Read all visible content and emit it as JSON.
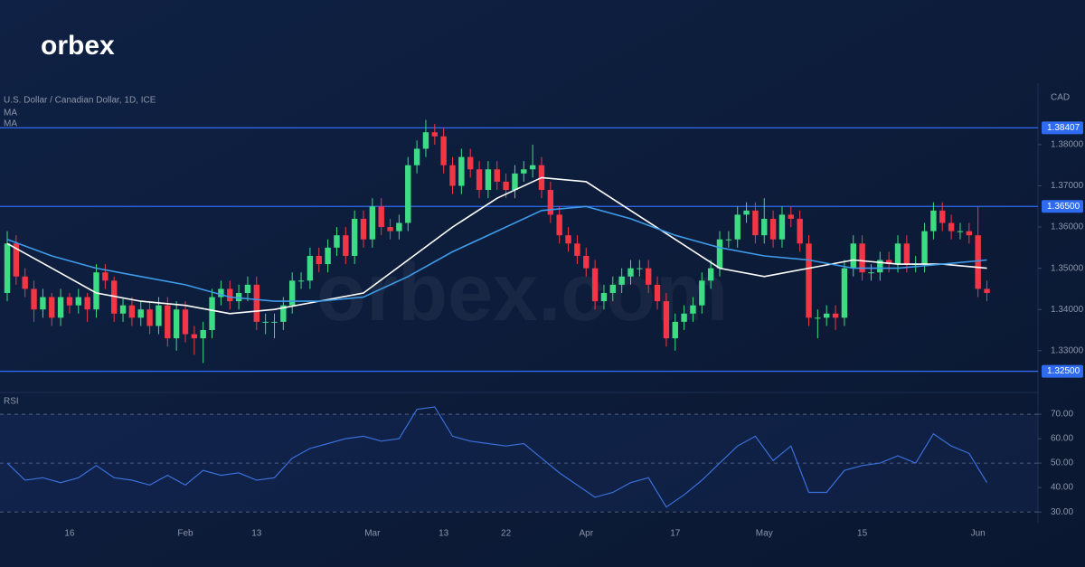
{
  "brand": "orbex",
  "watermark": "orbex.com",
  "chart_data": {
    "type": "candlestick",
    "title": "U.S. Dollar / Canadian Dollar, 1D, ICE",
    "price_axis_label": "CAD",
    "up_color": "#3ddc84",
    "down_color": "#f23645",
    "categories": [
      null,
      null,
      null,
      null,
      null,
      null,
      null,
      "16",
      null,
      null,
      null,
      null,
      null,
      null,
      null,
      null,
      null,
      null,
      null,
      null,
      "Feb",
      null,
      null,
      null,
      null,
      null,
      null,
      null,
      "13",
      null,
      null,
      null,
      null,
      null,
      null,
      null,
      null,
      null,
      null,
      null,
      null,
      "Mar",
      null,
      null,
      null,
      null,
      null,
      null,
      null,
      "13",
      null,
      null,
      null,
      null,
      null,
      null,
      "22",
      null,
      null,
      null,
      null,
      null,
      null,
      null,
      null,
      "Apr",
      null,
      null,
      null,
      null,
      null,
      null,
      null,
      null,
      null,
      "17",
      null,
      null,
      null,
      null,
      null,
      null,
      null,
      null,
      null,
      "May",
      null,
      null,
      null,
      null,
      null,
      null,
      null,
      null,
      null,
      null,
      "15",
      null,
      null,
      null,
      null,
      null,
      null,
      null,
      null,
      null,
      null,
      null,
      null,
      "Jun",
      null
    ],
    "open": [
      1.344,
      1.356,
      1.348,
      1.345,
      1.34,
      1.343,
      1.338,
      1.343,
      1.341,
      1.343,
      1.34,
      1.349,
      1.347,
      1.339,
      1.341,
      1.338,
      1.34,
      1.336,
      1.341,
      1.333,
      1.34,
      1.334,
      1.333,
      1.335,
      1.343,
      1.345,
      1.342,
      1.344,
      1.346,
      1.337,
      1.337,
      1.337,
      1.341,
      1.347,
      1.347,
      1.353,
      1.351,
      1.355,
      1.358,
      1.353,
      1.362,
      1.357,
      1.365,
      1.36,
      1.359,
      1.361,
      1.375,
      1.379,
      1.383,
      1.382,
      1.375,
      1.37,
      1.377,
      1.374,
      1.369,
      1.374,
      1.371,
      1.369,
      1.373,
      1.374,
      1.375,
      1.369,
      1.363,
      1.358,
      1.356,
      1.353,
      1.35,
      1.342,
      1.344,
      1.346,
      1.348,
      1.35,
      1.35,
      1.346,
      1.342,
      1.333,
      1.337,
      1.339,
      1.341,
      1.347,
      1.35,
      1.357,
      1.357,
      1.363,
      1.364,
      1.358,
      1.362,
      1.357,
      1.363,
      1.362,
      1.356,
      1.338,
      1.338,
      1.339,
      1.338,
      1.35,
      1.356,
      1.349,
      1.349,
      1.352,
      1.351,
      1.356,
      1.351,
      1.351,
      1.359,
      1.364,
      1.361,
      1.359,
      1.359,
      1.358,
      1.345
    ],
    "high": [
      1.359,
      1.358,
      1.35,
      1.347,
      1.345,
      1.344,
      1.345,
      1.344,
      1.345,
      1.344,
      1.351,
      1.351,
      1.348,
      1.343,
      1.343,
      1.342,
      1.342,
      1.343,
      1.343,
      1.342,
      1.342,
      1.336,
      1.337,
      1.345,
      1.347,
      1.347,
      1.346,
      1.348,
      1.348,
      1.339,
      1.339,
      1.343,
      1.349,
      1.349,
      1.355,
      1.355,
      1.357,
      1.36,
      1.36,
      1.364,
      1.364,
      1.367,
      1.367,
      1.362,
      1.363,
      1.377,
      1.381,
      1.386,
      1.385,
      1.384,
      1.377,
      1.379,
      1.379,
      1.376,
      1.376,
      1.376,
      1.373,
      1.375,
      1.376,
      1.38,
      1.377,
      1.371,
      1.365,
      1.36,
      1.358,
      1.355,
      1.352,
      1.346,
      1.348,
      1.35,
      1.352,
      1.352,
      1.352,
      1.348,
      1.344,
      1.339,
      1.341,
      1.343,
      1.349,
      1.352,
      1.359,
      1.359,
      1.365,
      1.366,
      1.366,
      1.367,
      1.364,
      1.365,
      1.365,
      1.364,
      1.358,
      1.34,
      1.341,
      1.341,
      1.352,
      1.358,
      1.358,
      1.351,
      1.354,
      1.354,
      1.358,
      1.358,
      1.353,
      1.361,
      1.366,
      1.366,
      1.363,
      1.361,
      1.361,
      1.365,
      1.347
    ],
    "low": [
      1.342,
      1.346,
      1.343,
      1.337,
      1.338,
      1.336,
      1.336,
      1.339,
      1.339,
      1.337,
      1.338,
      1.345,
      1.337,
      1.337,
      1.336,
      1.336,
      1.334,
      1.334,
      1.331,
      1.33,
      1.332,
      1.329,
      1.327,
      1.333,
      1.341,
      1.34,
      1.34,
      1.342,
      1.335,
      1.334,
      1.333,
      1.335,
      1.339,
      1.345,
      1.345,
      1.349,
      1.349,
      1.353,
      1.351,
      1.351,
      1.355,
      1.355,
      1.358,
      1.357,
      1.357,
      1.359,
      1.373,
      1.377,
      1.38,
      1.373,
      1.368,
      1.368,
      1.372,
      1.367,
      1.367,
      1.369,
      1.367,
      1.367,
      1.371,
      1.372,
      1.367,
      1.361,
      1.356,
      1.354,
      1.351,
      1.348,
      1.34,
      1.34,
      1.342,
      1.344,
      1.346,
      1.348,
      1.344,
      1.34,
      1.331,
      1.33,
      1.335,
      1.337,
      1.339,
      1.345,
      1.348,
      1.355,
      1.355,
      1.361,
      1.356,
      1.356,
      1.355,
      1.355,
      1.36,
      1.354,
      1.336,
      1.333,
      1.336,
      1.335,
      1.336,
      1.348,
      1.347,
      1.347,
      1.347,
      1.349,
      1.349,
      1.349,
      1.349,
      1.349,
      1.357,
      1.359,
      1.357,
      1.357,
      1.356,
      1.343,
      1.342
    ],
    "close": [
      1.356,
      1.348,
      1.345,
      1.34,
      1.343,
      1.338,
      1.343,
      1.341,
      1.343,
      1.34,
      1.349,
      1.347,
      1.339,
      1.341,
      1.338,
      1.34,
      1.336,
      1.341,
      1.333,
      1.34,
      1.334,
      1.333,
      1.335,
      1.343,
      1.345,
      1.342,
      1.344,
      1.346,
      1.337,
      1.337,
      1.337,
      1.341,
      1.347,
      1.347,
      1.353,
      1.351,
      1.355,
      1.358,
      1.353,
      1.362,
      1.357,
      1.365,
      1.36,
      1.359,
      1.361,
      1.375,
      1.379,
      1.383,
      1.382,
      1.375,
      1.37,
      1.377,
      1.374,
      1.369,
      1.374,
      1.371,
      1.369,
      1.373,
      1.374,
      1.375,
      1.369,
      1.363,
      1.358,
      1.356,
      1.353,
      1.35,
      1.342,
      1.344,
      1.346,
      1.348,
      1.35,
      1.35,
      1.346,
      1.342,
      1.333,
      1.337,
      1.339,
      1.341,
      1.347,
      1.35,
      1.357,
      1.357,
      1.363,
      1.364,
      1.358,
      1.362,
      1.357,
      1.363,
      1.362,
      1.356,
      1.338,
      1.338,
      1.339,
      1.338,
      1.35,
      1.356,
      1.349,
      1.349,
      1.352,
      1.351,
      1.356,
      1.351,
      1.351,
      1.359,
      1.364,
      1.361,
      1.359,
      1.359,
      1.358,
      1.345,
      1.344
    ],
    "ylim": [
      1.3203,
      1.3949
    ],
    "yticks": [
      {
        "value": 1.33,
        "label": "1.33000"
      },
      {
        "value": 1.34,
        "label": "1.34000"
      },
      {
        "value": 1.35,
        "label": "1.35000"
      },
      {
        "value": 1.36,
        "label": "1.36000"
      },
      {
        "value": 1.37,
        "label": "1.37000"
      },
      {
        "value": 1.38,
        "label": "1.38000"
      }
    ],
    "levels": [
      1.38407,
      {
        "value": 1.365,
        "label": "1.36500"
      },
      {
        "value": 1.325,
        "label": "1.32500"
      }
    ],
    "level_color": "#2f6bf0",
    "ma": [
      {
        "name": "MA",
        "color": "#ffffff",
        "x": [
          0,
          5,
          10,
          15,
          20,
          25,
          30,
          35,
          40,
          45,
          50,
          55,
          60,
          65,
          70,
          75,
          80,
          85,
          90,
          95,
          100,
          105,
          110
        ],
        "values": [
          1.356,
          1.35,
          1.344,
          1.342,
          1.341,
          1.339,
          1.34,
          1.342,
          1.344,
          1.352,
          1.36,
          1.367,
          1.372,
          1.371,
          1.364,
          1.357,
          1.35,
          1.348,
          1.35,
          1.352,
          1.351,
          1.351,
          1.35
        ]
      },
      {
        "name": "MA",
        "color": "#3d9be9",
        "x": [
          0,
          5,
          10,
          15,
          20,
          25,
          30,
          35,
          40,
          45,
          50,
          55,
          60,
          65,
          70,
          75,
          80,
          85,
          90,
          95,
          100,
          105,
          110
        ],
        "values": [
          1.357,
          1.353,
          1.35,
          1.348,
          1.346,
          1.343,
          1.342,
          1.342,
          1.343,
          1.348,
          1.354,
          1.359,
          1.364,
          1.365,
          1.362,
          1.358,
          1.355,
          1.353,
          1.352,
          1.35,
          1.35,
          1.351,
          1.352
        ]
      }
    ],
    "rsi": {
      "name": "RSI",
      "color": "#3a6fd8",
      "x": [
        0,
        2,
        4,
        6,
        8,
        10,
        12,
        14,
        16,
        18,
        20,
        22,
        24,
        26,
        28,
        30,
        32,
        34,
        36,
        38,
        40,
        42,
        44,
        46,
        48,
        50,
        52,
        54,
        56,
        58,
        60,
        62,
        64,
        66,
        68,
        70,
        72,
        74,
        76,
        78,
        80,
        82,
        84,
        86,
        88,
        90,
        92,
        94,
        96,
        98,
        100,
        102,
        104,
        106,
        108,
        110
      ],
      "values": [
        50,
        43,
        44,
        42,
        44,
        49,
        44,
        43,
        41,
        45,
        41,
        47,
        45,
        46,
        43,
        44,
        52,
        56,
        58,
        60,
        61,
        59,
        60,
        72,
        73,
        61,
        59,
        58,
        57,
        58,
        52,
        46,
        41,
        36,
        38,
        42,
        44,
        32,
        37,
        43,
        50,
        57,
        61,
        51,
        57,
        38,
        38,
        47,
        49,
        50,
        53,
        50,
        62,
        57,
        54,
        42
      ],
      "ylim": [
        25.6,
        77.8
      ],
      "yticks": [
        {
          "value": 30,
          "label": "30.00"
        },
        {
          "value": 40,
          "label": "40.00"
        },
        {
          "value": 50,
          "label": "50.00"
        },
        {
          "value": 60,
          "label": "60.00"
        },
        {
          "value": 70,
          "label": "70.00"
        }
      ],
      "band": [
        30,
        70
      ],
      "dashed": [
        30,
        50,
        70
      ]
    }
  }
}
